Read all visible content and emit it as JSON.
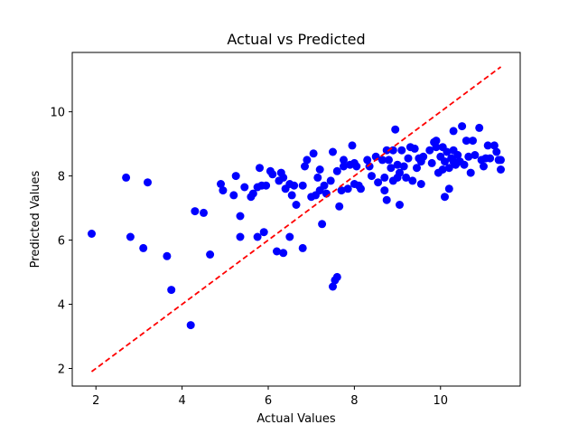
{
  "chart_data": {
    "type": "scatter",
    "title": "Actual vs Predicted",
    "xlabel": "Actual Values",
    "ylabel": "Predicted Values",
    "xlim": [
      1.45,
      11.85
    ],
    "ylim": [
      1.45,
      11.85
    ],
    "xticks": [
      2,
      4,
      6,
      8,
      10
    ],
    "yticks": [
      2,
      4,
      6,
      8,
      10
    ],
    "grid": false,
    "legend": "none",
    "colors": {
      "points": "#0000ff",
      "reference_line": "#ff0000",
      "axes": "#000000"
    },
    "reference_line": {
      "style": "dashed",
      "from": [
        1.9,
        1.9
      ],
      "to": [
        11.4,
        11.4
      ]
    },
    "series": [
      {
        "points": [
          [
            1.9,
            6.2
          ],
          [
            2.7,
            7.95
          ],
          [
            2.8,
            6.1
          ],
          [
            3.1,
            5.75
          ],
          [
            3.2,
            7.8
          ],
          [
            3.65,
            5.5
          ],
          [
            3.75,
            4.45
          ],
          [
            4.2,
            3.35
          ],
          [
            4.3,
            6.9
          ],
          [
            4.5,
            6.85
          ],
          [
            4.65,
            5.55
          ],
          [
            4.9,
            7.75
          ],
          [
            4.95,
            7.55
          ],
          [
            5.2,
            7.4
          ],
          [
            5.25,
            8.0
          ],
          [
            5.35,
            6.1
          ],
          [
            5.35,
            6.75
          ],
          [
            5.45,
            7.65
          ],
          [
            5.6,
            7.35
          ],
          [
            5.65,
            7.45
          ],
          [
            5.75,
            6.1
          ],
          [
            5.75,
            7.65
          ],
          [
            5.8,
            8.25
          ],
          [
            5.85,
            7.7
          ],
          [
            5.9,
            6.25
          ],
          [
            5.95,
            7.7
          ],
          [
            6.05,
            8.15
          ],
          [
            6.1,
            8.05
          ],
          [
            6.2,
            5.65
          ],
          [
            6.25,
            7.85
          ],
          [
            6.3,
            8.1
          ],
          [
            6.35,
            5.6
          ],
          [
            6.35,
            7.95
          ],
          [
            6.4,
            7.6
          ],
          [
            6.5,
            7.75
          ],
          [
            6.5,
            6.1
          ],
          [
            6.55,
            7.4
          ],
          [
            6.6,
            7.7
          ],
          [
            6.65,
            7.1
          ],
          [
            6.8,
            5.75
          ],
          [
            6.8,
            7.7
          ],
          [
            6.85,
            8.3
          ],
          [
            6.9,
            8.5
          ],
          [
            7.0,
            7.35
          ],
          [
            7.05,
            8.7
          ],
          [
            7.1,
            7.4
          ],
          [
            7.15,
            7.95
          ],
          [
            7.2,
            8.2
          ],
          [
            7.2,
            7.55
          ],
          [
            7.25,
            6.5
          ],
          [
            7.3,
            7.7
          ],
          [
            7.35,
            7.45
          ],
          [
            7.45,
            7.85
          ],
          [
            7.5,
            8.75
          ],
          [
            7.5,
            4.55
          ],
          [
            7.55,
            4.75
          ],
          [
            7.6,
            4.85
          ],
          [
            7.6,
            8.15
          ],
          [
            7.65,
            7.05
          ],
          [
            7.7,
            7.55
          ],
          [
            7.75,
            8.5
          ],
          [
            7.75,
            8.3
          ],
          [
            7.85,
            7.6
          ],
          [
            7.9,
            8.35
          ],
          [
            7.95,
            8.95
          ],
          [
            8.0,
            7.75
          ],
          [
            8.0,
            8.4
          ],
          [
            8.05,
            8.3
          ],
          [
            8.1,
            7.7
          ],
          [
            8.15,
            7.6
          ],
          [
            8.3,
            8.5
          ],
          [
            8.35,
            8.3
          ],
          [
            8.4,
            8.0
          ],
          [
            8.5,
            8.6
          ],
          [
            8.55,
            7.8
          ],
          [
            8.65,
            8.5
          ],
          [
            8.7,
            7.55
          ],
          [
            8.7,
            7.95
          ],
          [
            8.75,
            8.8
          ],
          [
            8.75,
            7.25
          ],
          [
            8.8,
            8.5
          ],
          [
            8.85,
            8.25
          ],
          [
            8.9,
            8.8
          ],
          [
            8.9,
            7.85
          ],
          [
            8.95,
            9.45
          ],
          [
            9.0,
            8.35
          ],
          [
            9.0,
            7.95
          ],
          [
            9.05,
            8.1
          ],
          [
            9.05,
            7.1
          ],
          [
            9.1,
            8.8
          ],
          [
            9.15,
            8.3
          ],
          [
            9.2,
            7.95
          ],
          [
            9.25,
            8.55
          ],
          [
            9.3,
            8.9
          ],
          [
            9.35,
            7.85
          ],
          [
            9.4,
            8.85
          ],
          [
            9.45,
            8.25
          ],
          [
            9.5,
            8.55
          ],
          [
            9.55,
            8.45
          ],
          [
            9.55,
            7.75
          ],
          [
            9.6,
            8.6
          ],
          [
            9.75,
            8.8
          ],
          [
            9.8,
            8.4
          ],
          [
            9.85,
            9.05
          ],
          [
            9.9,
            8.9
          ],
          [
            9.9,
            9.1
          ],
          [
            9.95,
            8.1
          ],
          [
            10.0,
            8.6
          ],
          [
            10.05,
            8.2
          ],
          [
            10.05,
            8.9
          ],
          [
            10.1,
            7.35
          ],
          [
            10.1,
            8.45
          ],
          [
            10.15,
            8.75
          ],
          [
            10.2,
            7.6
          ],
          [
            10.2,
            8.25
          ],
          [
            10.25,
            8.55
          ],
          [
            10.3,
            8.45
          ],
          [
            10.3,
            9.4
          ],
          [
            10.3,
            8.8
          ],
          [
            10.35,
            8.35
          ],
          [
            10.4,
            8.65
          ],
          [
            10.45,
            8.45
          ],
          [
            10.5,
            9.55
          ],
          [
            10.55,
            8.35
          ],
          [
            10.6,
            9.1
          ],
          [
            10.65,
            8.6
          ],
          [
            10.7,
            8.1
          ],
          [
            10.75,
            9.1
          ],
          [
            10.8,
            8.65
          ],
          [
            10.9,
            9.5
          ],
          [
            10.95,
            8.5
          ],
          [
            11.0,
            8.3
          ],
          [
            11.05,
            8.55
          ],
          [
            11.1,
            8.95
          ],
          [
            11.15,
            8.55
          ],
          [
            11.25,
            8.95
          ],
          [
            11.3,
            8.75
          ],
          [
            11.35,
            8.5
          ],
          [
            11.4,
            8.5
          ],
          [
            11.4,
            8.2
          ]
        ]
      }
    ]
  }
}
